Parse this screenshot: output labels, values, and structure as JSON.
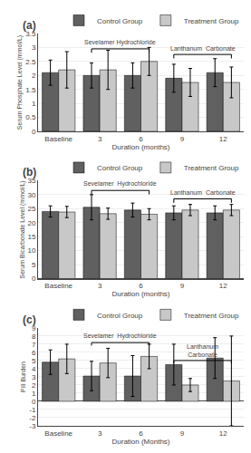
{
  "chart_data": [
    {
      "type": "bar",
      "title": "(a)",
      "xlabel": "Duration (months)",
      "ylabel": "Serum Phosphate Level (mmol/L)",
      "categories": [
        "Baseline",
        "3",
        "6",
        "9",
        "12"
      ],
      "series": [
        {
          "name": "Control Group",
          "color": "#606060",
          "values": [
            2.1,
            2.0,
            2.0,
            1.9,
            2.1
          ],
          "errors": [
            0.45,
            0.45,
            0.45,
            0.5,
            0.5
          ]
        },
        {
          "name": "Treatment Group",
          "color": "#c8c8c8",
          "values": [
            2.2,
            2.2,
            2.5,
            1.75,
            1.75
          ],
          "errors": [
            0.65,
            0.7,
            0.5,
            0.5,
            0.55
          ]
        }
      ],
      "ylim": [
        0,
        3.5
      ],
      "yticks": [
        0,
        0.5,
        1.0,
        1.5,
        2.0,
        2.5,
        3.0,
        3.5
      ],
      "grid": true,
      "legend": "upper right",
      "annotations": [
        {
          "text": "Sevelamer Hydrochloride",
          "y": 2.95,
          "x": [
            "3",
            "6"
          ]
        },
        {
          "text": "Lanthanum  Carbonate",
          "y": 2.75,
          "x": [
            "9",
            "12"
          ]
        }
      ]
    },
    {
      "type": "bar",
      "title": "(b)",
      "xlabel": "Duration (months)",
      "ylabel": "Serum Bicarbonate Level (mmol/L)",
      "categories": [
        "Baseline",
        "3",
        "6",
        "9",
        "12"
      ],
      "series": [
        {
          "name": "Control Group",
          "color": "#606060",
          "values": [
            24.0,
            25.5,
            24.5,
            23.5,
            23.5
          ],
          "errors": [
            2.0,
            4.5,
            2.5,
            2.5,
            2.5
          ]
        },
        {
          "name": "Treatment Group",
          "color": "#c8c8c8",
          "values": [
            23.8,
            23.2,
            23.0,
            24.5,
            24.5
          ],
          "errors": [
            2.0,
            2.0,
            2.0,
            2.0,
            2.0
          ]
        }
      ],
      "ylim": [
        0,
        35
      ],
      "yticks": [
        0,
        5,
        10,
        15,
        20,
        25,
        30,
        35
      ],
      "grid": true,
      "legend": "upper right",
      "annotations": [
        {
          "text": "Sevelamer  Hydrochloride",
          "y": 31.5,
          "x": [
            "3",
            "6"
          ]
        },
        {
          "text": "Lanthanum  Carbonate",
          "y": 28.5,
          "x": [
            "9",
            "12"
          ]
        }
      ]
    },
    {
      "type": "bar",
      "title": "(c)",
      "xlabel": "Duration (Months)",
      "ylabel": "Pill Burden",
      "categories": [
        "Baseline",
        "3",
        "6",
        "9",
        "12"
      ],
      "series": [
        {
          "name": "Control Group",
          "color": "#606060",
          "values": [
            4.8,
            3.1,
            3.1,
            4.5,
            5.3
          ],
          "errors": [
            1.5,
            1.8,
            2.5,
            2.5,
            2.5
          ]
        },
        {
          "name": "Treatment Group",
          "color": "#c8c8c8",
          "values": [
            5.2,
            4.7,
            5.5,
            2.0,
            2.5
          ],
          "errors": [
            1.8,
            1.8,
            1.5,
            0.8,
            5.5
          ]
        }
      ],
      "ylim": [
        -3,
        9
      ],
      "yticks": [
        -3,
        -2,
        -1,
        0,
        1,
        2,
        3,
        4,
        5,
        6,
        7,
        8,
        9
      ],
      "grid": true,
      "legend": "upper right",
      "annotations": [
        {
          "text": "Sevelamer  Hydrochloride",
          "y": 7.2,
          "x": [
            "3",
            "6"
          ]
        },
        {
          "text": "Lanthanum\nCarbonate",
          "y": 5.0,
          "x": [
            "9",
            "12"
          ]
        }
      ]
    }
  ]
}
